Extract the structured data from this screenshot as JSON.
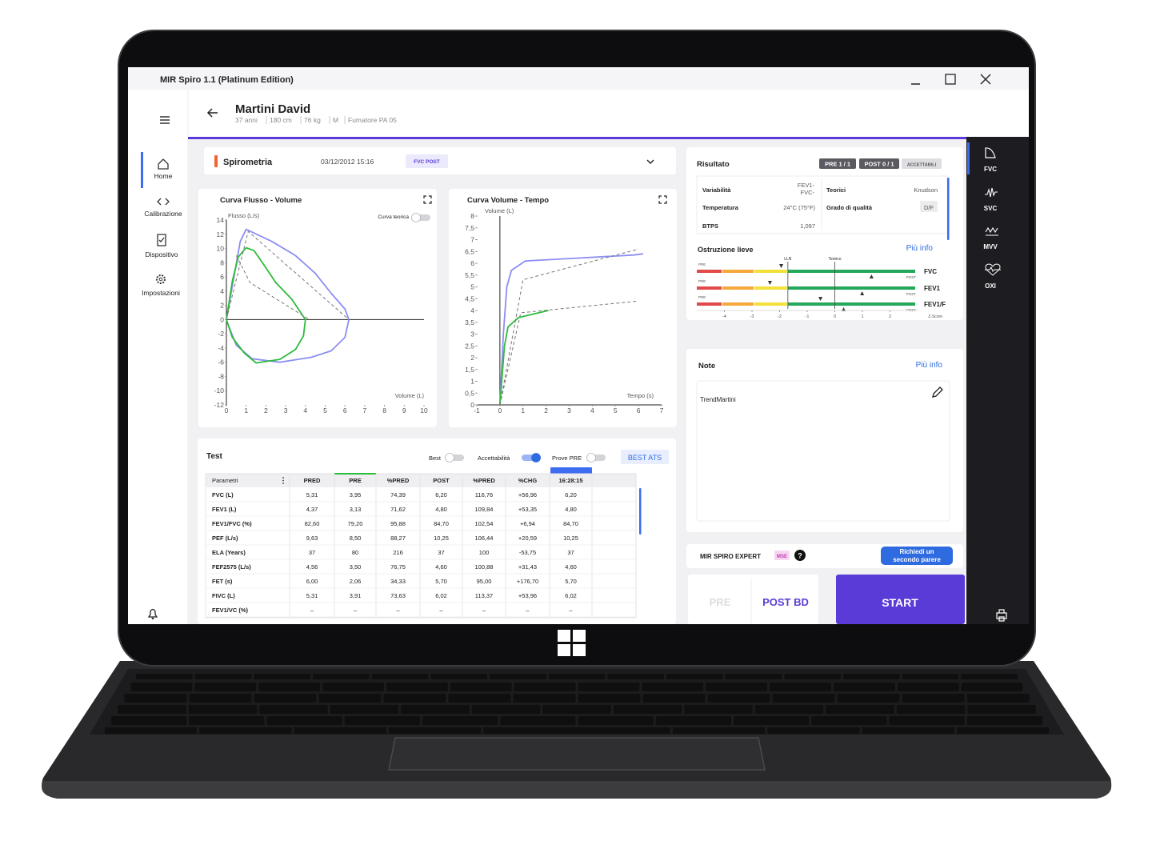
{
  "window": {
    "title": "MIR Spiro 1.1 (Platinum Edition)"
  },
  "nav": [
    "Home",
    "Calibrazione",
    "Dispositivo",
    "Impostazioni"
  ],
  "patient": {
    "name": "Martini David",
    "details": [
      "37 anni",
      "180 cm",
      "76 kg",
      "M",
      "Fumatore PA 05"
    ]
  },
  "session": {
    "title": "Spirometria",
    "date": "03/12/2012 15:16",
    "tag": "FVC POST"
  },
  "chart_data": [
    {
      "type": "line",
      "title": "Curva Flusso - Volume",
      "ylabel": "Flusso (L/s)",
      "xlabel": "Volume (L)",
      "toggle": {
        "label": "Curva teorica",
        "on": false
      },
      "xlim": [
        0,
        10
      ],
      "ylim": [
        -12,
        14
      ],
      "xticks": [
        0,
        1,
        2,
        3,
        4,
        5,
        6,
        7,
        8,
        9,
        10
      ],
      "yticks": [
        -12,
        -10,
        -8,
        -6,
        -4,
        -2,
        0,
        2,
        4,
        6,
        8,
        10,
        12,
        14
      ],
      "series": [
        {
          "color": "#8c8ef2",
          "dashed": false,
          "x": [
            0,
            0.7,
            1.0,
            2.3,
            3.5,
            4.5,
            5.3,
            6.0,
            6.2,
            6.0,
            5.3,
            4.3,
            2.7,
            1.3,
            0.5,
            0.1,
            0
          ],
          "values": [
            0,
            11,
            12.7,
            11.0,
            9.0,
            6.5,
            3.7,
            1.5,
            0,
            -2.5,
            -4.4,
            -5.3,
            -6.0,
            -5.5,
            -3.6,
            -0.8,
            0
          ]
        },
        {
          "color": "#2dbb3a",
          "dashed": false,
          "x": [
            0,
            0.3,
            0.6,
            1.0,
            1.4,
            1.9,
            2.5,
            3.3,
            4.0,
            3.9,
            3.5,
            2.7,
            1.5,
            0.9,
            0.3,
            0
          ],
          "values": [
            0,
            5.4,
            8.8,
            10.1,
            9.7,
            7.7,
            5.2,
            2.9,
            0,
            -2.3,
            -4.2,
            -5.6,
            -6.1,
            -4.7,
            -2.5,
            0
          ]
        },
        {
          "color": "#777777",
          "dashed": true,
          "x": [
            0,
            1.1,
            6.2
          ],
          "values": [
            0,
            12.4,
            0
          ]
        },
        {
          "color": "#777777",
          "dashed": true,
          "x": [
            0.5,
            1.2,
            4.2
          ],
          "values": [
            9,
            5.2,
            0
          ]
        }
      ]
    },
    {
      "type": "line",
      "title": "Curva Volume - Tempo",
      "ylabel": "Volume (L)",
      "xlabel": "Tempo (s)",
      "xlim": [
        -1,
        7
      ],
      "ylim": [
        0,
        8
      ],
      "xticks": [
        -1,
        0,
        1,
        2,
        3,
        4,
        5,
        6,
        7
      ],
      "yticks": [
        0,
        {
          "value": 0.5,
          "label": "0,5"
        },
        1,
        {
          "value": 1.5,
          "label": "1,5"
        },
        2,
        {
          "value": 2.5,
          "label": "2,5"
        },
        3,
        {
          "value": 3.5,
          "label": "3,5"
        },
        4,
        {
          "value": 4.5,
          "label": "4,5"
        },
        5,
        {
          "value": 5.5,
          "label": "5,5"
        },
        6,
        {
          "value": 6.5,
          "label": "6,5"
        },
        7,
        {
          "value": 7.5,
          "label": "7,5"
        },
        8
      ],
      "series": [
        {
          "color": "#8c8ef2",
          "dashed": false,
          "x": [
            0,
            0.15,
            0.3,
            0.5,
            1.1,
            3,
            5.8,
            6.2
          ],
          "values": [
            0,
            3,
            5,
            5.7,
            6.1,
            6.2,
            6.35,
            6.4
          ]
        },
        {
          "color": "#2dbb3a",
          "dashed": false,
          "x": [
            0,
            0.2,
            0.35,
            0.8,
            2.1
          ],
          "values": [
            0,
            2.5,
            3.3,
            3.7,
            4.0
          ]
        },
        {
          "color": "#777777",
          "dashed": true,
          "x": [
            0,
            1,
            6
          ],
          "values": [
            0,
            5.3,
            6.6
          ]
        },
        {
          "color": "#777777",
          "dashed": true,
          "x": [
            0,
            0.9,
            6
          ],
          "values": [
            0,
            3.9,
            4.4
          ]
        }
      ]
    },
    {
      "type": "dot",
      "title": "Ostruzione lieve",
      "xlabel": "Z-Score",
      "xlim": [
        -5,
        3
      ],
      "xticks": [
        -4,
        -3,
        -2,
        -1,
        0,
        1,
        2
      ],
      "categories": [
        "FVC",
        "FEV1",
        "FEV1/F"
      ],
      "series": [
        {
          "name": "PRE",
          "color": "#333333",
          "values": [
            -1.94,
            -2.35,
            -0.52
          ]
        },
        {
          "name": "POST",
          "color": "#333333",
          "values": [
            1.33,
            0.99,
            0.32
          ]
        }
      ],
      "reference_lines": [
        {
          "label": "LLN",
          "value": -1.7
        },
        {
          "label": "Teorico",
          "value": 0
        }
      ]
    }
  ],
  "test": {
    "title": "Test",
    "toggles": [
      {
        "label": "Best",
        "on": false
      },
      {
        "label": "Accettabilità",
        "on": true
      },
      {
        "label": "Prove PRE",
        "on": false
      }
    ],
    "button": "BEST ATS",
    "columns": [
      "Parametri",
      "PRED",
      "PRE",
      "%PRED",
      "POST",
      "%PRED",
      "%CHG",
      "16:28:15"
    ],
    "rows": [
      [
        "FVC (L)",
        "5,31",
        "3,95",
        "74,39",
        "6,20",
        "116,76",
        "+56,96",
        "6,20"
      ],
      [
        "FEV1 (L)",
        "4,37",
        "3,13",
        "71,62",
        "4,80",
        "109,84",
        "+53,35",
        "4,80"
      ],
      [
        "FEV1/FVC (%)",
        "82,60",
        "79,20",
        "95,88",
        "84,70",
        "102,54",
        "+6,94",
        "84,70"
      ],
      [
        "PEF (L/s)",
        "9,63",
        "8,50",
        "88,27",
        "10,25",
        "106,44",
        "+20,59",
        "10,25"
      ],
      [
        "ELA (Years)",
        "37",
        "80",
        "216",
        "37",
        "100",
        "-53,75",
        "37"
      ],
      [
        "FEF2575 (L/s)",
        "4,56",
        "3,50",
        "76,75",
        "4,60",
        "100,88",
        "+31,43",
        "4,60"
      ],
      [
        "FET (s)",
        "6,00",
        "2,06",
        "34,33",
        "5,70",
        "95,00",
        "+176,70",
        "5,70"
      ],
      [
        "FIVC (L)",
        "5,31",
        "3,91",
        "73,63",
        "6,02",
        "113,37",
        "+53,96",
        "6,02"
      ],
      [
        "FEV1/VC (%)",
        "–",
        "–",
        "–",
        "–",
        "–",
        "–",
        "–"
      ]
    ]
  },
  "result": {
    "title": "Risultato",
    "badges": [
      "PRE 1 / 1",
      "POST 0 / 1",
      "ACCETTABILI"
    ],
    "left": [
      {
        "label": "Variabilità",
        "value": [
          "FEV1-",
          "FVC-"
        ]
      },
      {
        "label": "Temperatura",
        "value": "24°C (75°F)"
      },
      {
        "label": "BTPS",
        "value": "1,097"
      }
    ],
    "right": [
      {
        "label": "Teorici",
        "value": "Knudson"
      },
      {
        "label": "Grado di qualità",
        "value": "D/F"
      }
    ],
    "more_info": "Più info"
  },
  "note": {
    "title": "Note",
    "more_info": "Più info",
    "text": "TrendMartini"
  },
  "expert": {
    "title": "MIR SPIRO EXPERT",
    "badge": "MSE",
    "help": "?",
    "button": [
      "Richiedi un",
      "secondo parere"
    ]
  },
  "actions": {
    "pre": "PRE",
    "post": "POST BD",
    "start": "START"
  },
  "side_tabs": [
    "FVC",
    "SVC",
    "MVV",
    "OXI"
  ]
}
